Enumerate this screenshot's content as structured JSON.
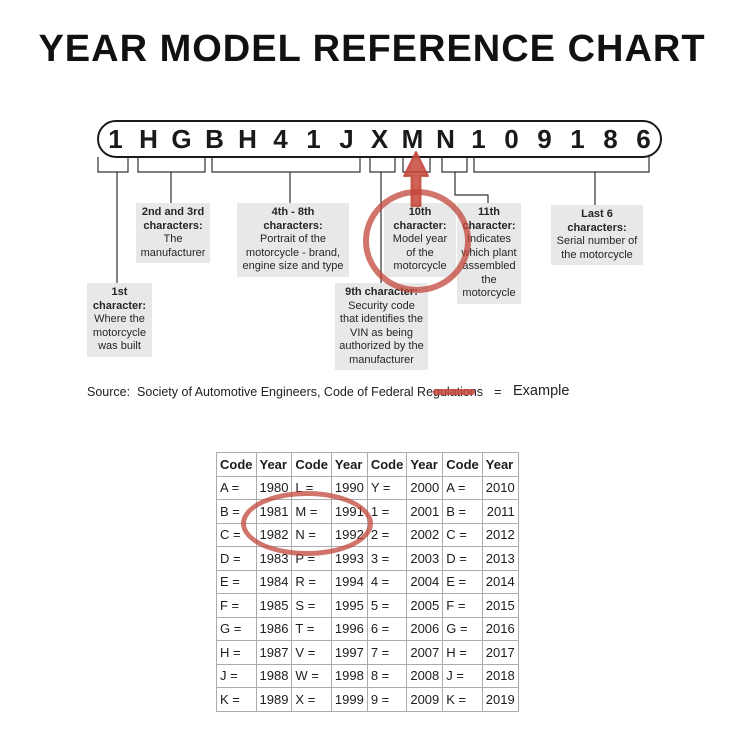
{
  "title": "YEAR MODEL REFERENCE CHART",
  "vin": {
    "characters": [
      "1",
      "H",
      "G",
      "B",
      "H",
      "4",
      "1",
      "J",
      "X",
      "M",
      "N",
      "1",
      "0",
      "9",
      "1",
      "8",
      "6"
    ]
  },
  "callouts": {
    "first": {
      "heading": "1st\ncharacter:",
      "body": "Where the\nmotorcycle\nwas built"
    },
    "second_third": {
      "heading": "2nd and 3rd\ncharacters:",
      "body": "The\nmanufacturer"
    },
    "fourth_eighth": {
      "heading": "4th - 8th\ncharacters:",
      "body": "Portrait of the\nmotorcycle - brand,\nengine size and type"
    },
    "ninth": {
      "heading": "9th character:",
      "body": "Security code\nthat identifies the\nVIN as being\nauthorized by the\nmanufacturer"
    },
    "tenth": {
      "heading": "10th\ncharacter:",
      "body": "Model year\nof the\nmotorcycle"
    },
    "eleventh": {
      "heading": "11th\ncharacter:",
      "body": "Indicates\nwhich plant\nassembled\nthe\nmotorcycle"
    },
    "last_six": {
      "heading": "Last 6\ncharacters:",
      "body": "Serial number of\nthe motorcycle"
    }
  },
  "source": "Source:  Society of Automotive Engineers, Code of Federal Regulations",
  "legend": {
    "equals": "=",
    "label": "Example"
  },
  "table": {
    "headers": [
      "Code",
      "Year",
      "Code",
      "Year",
      "Code",
      "Year",
      "Code",
      "Year"
    ],
    "rows": [
      [
        "A =",
        "1980",
        "L =",
        "1990",
        "Y =",
        "2000",
        "A =",
        "2010"
      ],
      [
        "B =",
        "1981",
        "M =",
        "1991",
        "1 =",
        "2001",
        "B =",
        "2011"
      ],
      [
        "C =",
        "1982",
        "N =",
        "1992",
        "2 =",
        "2002",
        "C =",
        "2012"
      ],
      [
        "D =",
        "1983",
        "P =",
        "1993",
        "3 =",
        "2003",
        "D =",
        "2013"
      ],
      [
        "E =",
        "1984",
        "R =",
        "1994",
        "4 =",
        "2004",
        "E =",
        "2014"
      ],
      [
        "F =",
        "1985",
        "S =",
        "1995",
        "5 =",
        "2005",
        "F =",
        "2015"
      ],
      [
        "G =",
        "1986",
        "T =",
        "1996",
        "6 =",
        "2006",
        "G =",
        "2016"
      ],
      [
        "H =",
        "1987",
        "V =",
        "1997",
        "7 =",
        "2007",
        "H =",
        "2017"
      ],
      [
        "J =",
        "1988",
        "W =",
        "1998",
        "8 =",
        "2008",
        "J =",
        "2018"
      ],
      [
        "K =",
        "1989",
        "X =",
        "1999",
        "9 =",
        "2009",
        "K =",
        "2019"
      ]
    ],
    "highlighted_example": {
      "code": "M =",
      "year": "1991"
    }
  },
  "colors": {
    "accent_red": "#c5473a",
    "callout_background": "#e8e8e8",
    "table_border": "#ababab",
    "text": "#1a1a1a"
  }
}
